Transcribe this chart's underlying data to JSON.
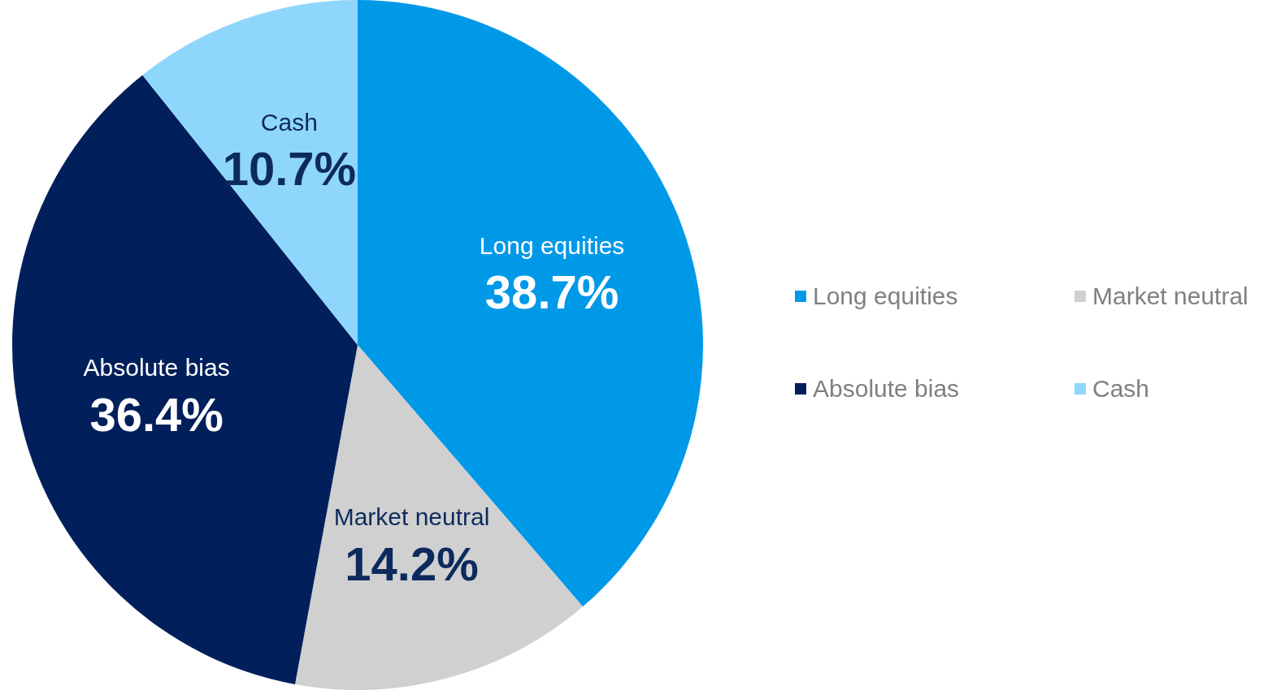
{
  "chart_data": {
    "type": "pie",
    "categories": [
      "Long equities",
      "Market neutral",
      "Absolute bias",
      "Cash"
    ],
    "values": [
      38.7,
      14.2,
      36.4,
      10.7
    ],
    "colors": [
      "#0099e8",
      "#d0d0d0",
      "#001f5b",
      "#8fd6fc"
    ],
    "value_labels": [
      "38.7%",
      "14.2%",
      "36.4%",
      "10.7%"
    ],
    "legend": "right"
  }
}
